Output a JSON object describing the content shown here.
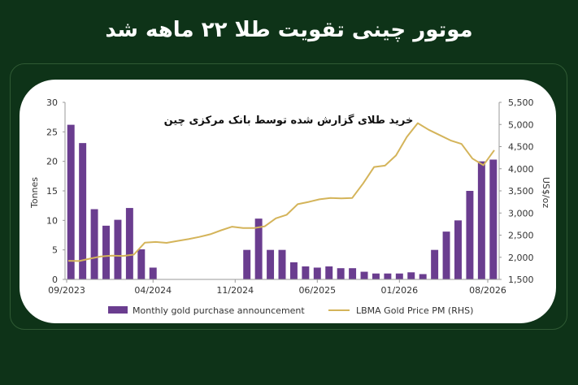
{
  "headline": "موتور چینی تقویت طلا ۲۲ ماهه شد",
  "chart_data": {
    "type": "bar",
    "title": "خرید طلای گزارش شده توسط بانک مرکزی چین",
    "ylabel_left": "Tonnes",
    "ylabel_right": "US$/oz",
    "ylim_left": [
      0,
      30
    ],
    "ylim_right": [
      1500,
      5500
    ],
    "left_ticks": [
      "0",
      "5",
      "10",
      "15",
      "20",
      "25",
      "30"
    ],
    "right_ticks": [
      "1,500",
      "2,000",
      "2,500",
      "3,000",
      "3,500",
      "4,000",
      "4,500",
      "5,000",
      "5,500"
    ],
    "x_tick_labels": [
      "09/2023",
      "04/2024",
      "11/2024",
      "06/2025",
      "01/2026",
      "08/2026"
    ],
    "bar_color": "#6a3d8f",
    "line_color": "#d4b45a",
    "series": [
      {
        "name": "Monthly gold purchase announcement",
        "type": "bar",
        "values": [
          26.2,
          23.1,
          11.9,
          9.1,
          10.1,
          12.1,
          5.1,
          2.0,
          0,
          0,
          0,
          0,
          0,
          0,
          0,
          5.0,
          10.3,
          5.0,
          5.0,
          2.9,
          2.2,
          2.0,
          2.2,
          1.9,
          1.9,
          1.3,
          1.0,
          1.0,
          1.0,
          1.2,
          0.9,
          5.0,
          8.1,
          10.0,
          15.0,
          20.0,
          20.3
        ]
      },
      {
        "name": "LBMA Gold Price PM (RHS)",
        "type": "line",
        "values": [
          1920,
          1915,
          1970,
          2020,
          2035,
          2030,
          2060,
          2330,
          2345,
          2325,
          2370,
          2410,
          2460,
          2520,
          2610,
          2690,
          2660,
          2660,
          2700,
          2880,
          2960,
          3200,
          3250,
          3310,
          3340,
          3330,
          3340,
          3670,
          4040,
          4070,
          4300,
          4720,
          5030,
          4880,
          4760,
          4640,
          4560,
          4230,
          4080,
          4420
        ]
      }
    ]
  }
}
